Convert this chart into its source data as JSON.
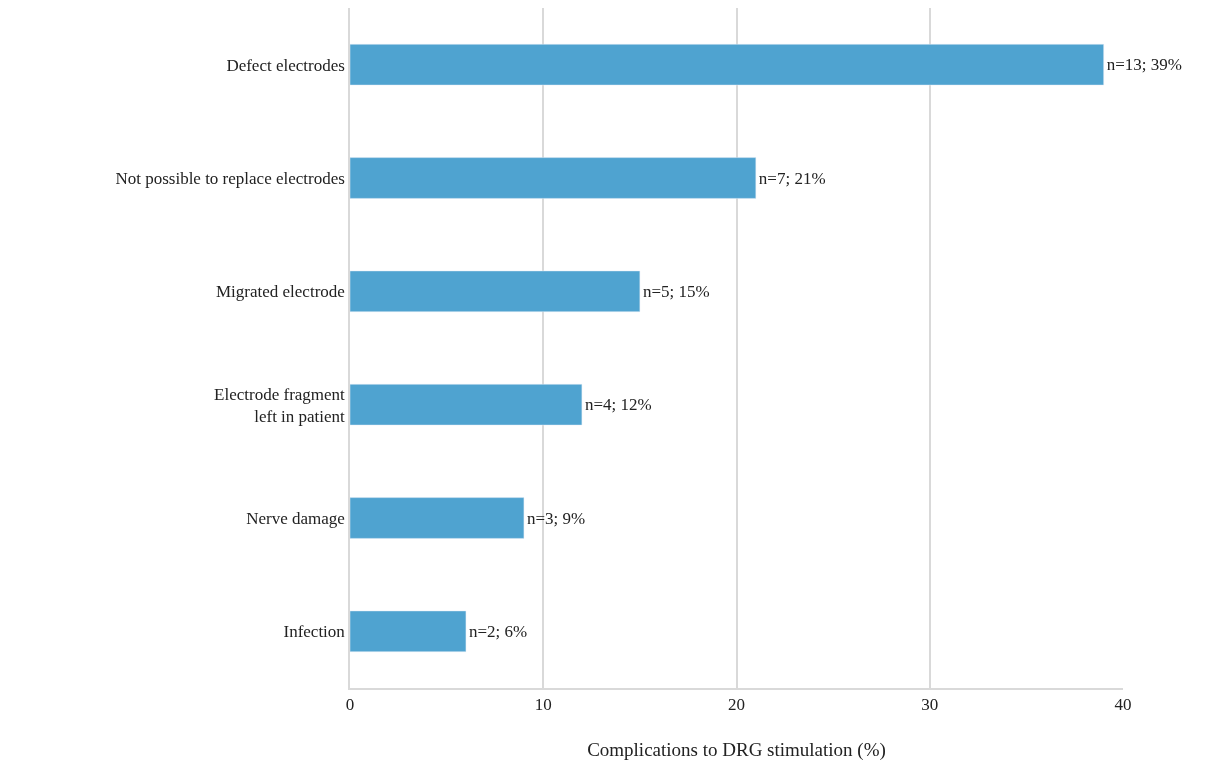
{
  "chart_data": {
    "type": "bar",
    "orientation": "horizontal",
    "xlabel": "Complications to DRG stimulation (%)",
    "categories": [
      "Defect electrodes",
      "Not possible to replace electrodes",
      "Migrated electrode",
      "Electrode fragment\nleft in patient",
      "Nerve damage",
      "Infection"
    ],
    "values": [
      39,
      21,
      15,
      12,
      9,
      6
    ],
    "value_labels": [
      "n=13; 39%",
      "n=7; 21%",
      "n=5; 15%",
      "n=4; 12%",
      "n=3; 9%",
      "n=2; 6%"
    ],
    "color": "#4fa3d0",
    "xlim": [
      0,
      40
    ],
    "xticks": [
      0,
      10,
      20,
      30,
      40
    ],
    "grid": "x",
    "legend": false
  }
}
